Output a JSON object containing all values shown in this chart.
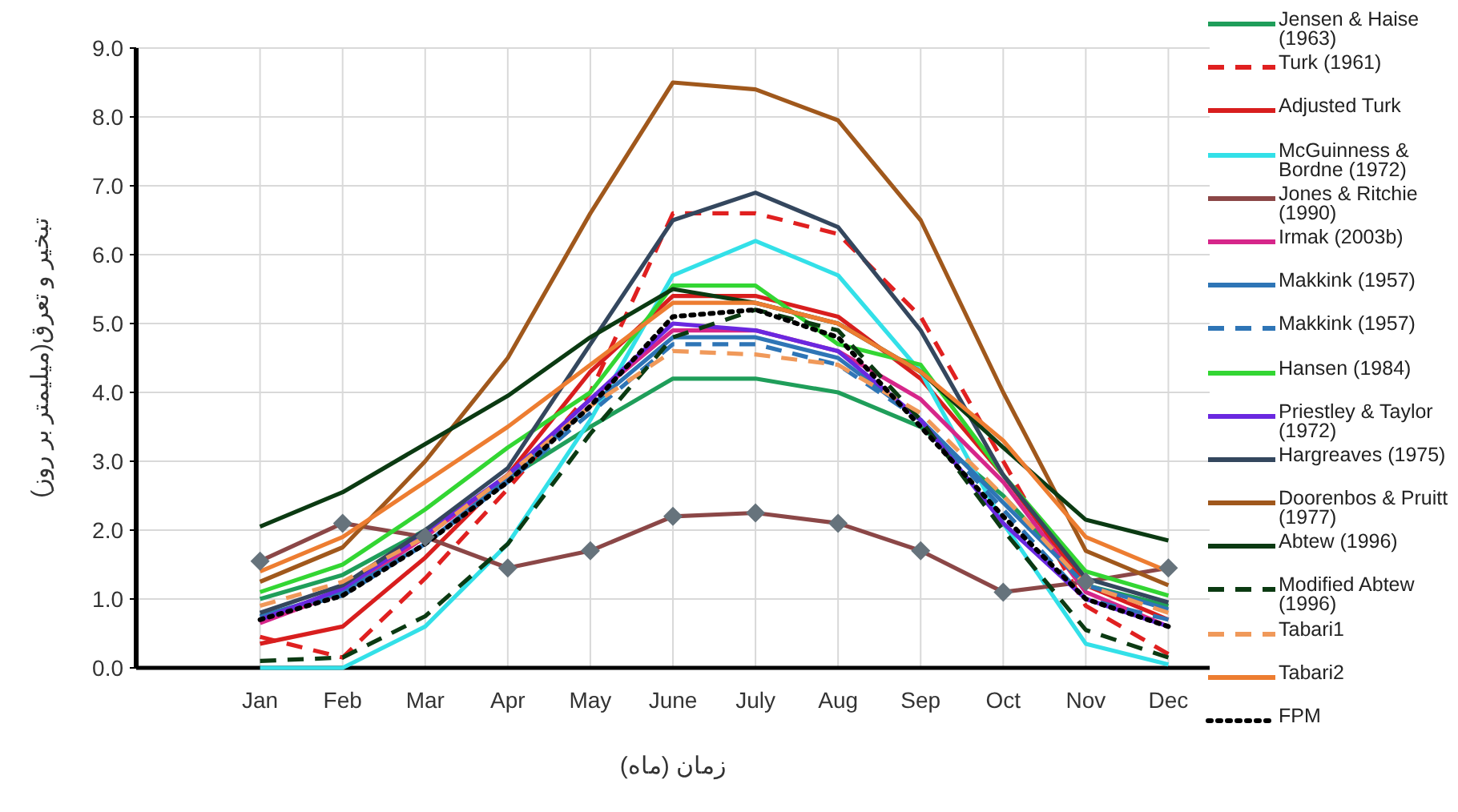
{
  "chart_data": {
    "type": "line",
    "xlabel": "زمان (ماه)",
    "ylabel": "تبخیر و تعرق(میلیمتر بر روز)",
    "categories": [
      "Jan",
      "Feb",
      "Mar",
      "Apr",
      "May",
      "June",
      "July",
      "Aug",
      "Sep",
      "Oct",
      "Nov",
      "Dec"
    ],
    "ylim": [
      0,
      9
    ],
    "yticks": [
      {
        "value": 0,
        "label": "0.0"
      },
      {
        "value": 1,
        "label": "1.0"
      },
      {
        "value": 2,
        "label": "2.0"
      },
      {
        "value": 3,
        "label": "3.0"
      },
      {
        "value": 4,
        "label": "4.0"
      },
      {
        "value": 5,
        "label": "5.0"
      },
      {
        "value": 6,
        "label": "6.0"
      },
      {
        "value": 7,
        "label": "7.0"
      },
      {
        "value": 8,
        "label": "8.0"
      },
      {
        "value": 9,
        "label": "9.0"
      }
    ],
    "grid": true,
    "legend": "right",
    "marker": "none",
    "series": [
      {
        "name": "Jensen & Haise (1963)",
        "color": "#1f9e5a",
        "line_style": "solid",
        "values": [
          1.0,
          1.35,
          2.0,
          2.75,
          3.5,
          4.2,
          4.2,
          4.0,
          3.5,
          2.5,
          1.2,
          0.9
        ]
      },
      {
        "name": "Turk (1961)",
        "color": "#e02020",
        "line_style": "dashed",
        "values": [
          0.45,
          0.15,
          1.3,
          2.6,
          4.0,
          6.6,
          6.6,
          6.3,
          5.1,
          3.0,
          0.9,
          0.2
        ]
      },
      {
        "name": "Adjusted Turk",
        "color": "#d81e1e",
        "line_style": "solid",
        "values": [
          0.35,
          0.6,
          1.6,
          2.8,
          4.3,
          5.4,
          5.4,
          5.1,
          4.2,
          2.8,
          1.2,
          0.7
        ]
      },
      {
        "name": "McGuinness & Bordne (1972)",
        "color": "#33e0e8",
        "line_style": "solid",
        "values": [
          0.0,
          0.0,
          0.6,
          1.8,
          3.6,
          5.7,
          6.2,
          5.7,
          4.3,
          2.1,
          0.35,
          0.05
        ]
      },
      {
        "name": "Jones & Ritchie (1990)",
        "color": "#8b4747",
        "line_style": "solid",
        "marker": "diamond",
        "values": [
          1.55,
          2.1,
          1.9,
          1.45,
          1.7,
          2.2,
          2.25,
          2.1,
          1.7,
          1.1,
          1.25,
          1.45
        ]
      },
      {
        "name": "Irmak (2003b)",
        "color": "#d6268a",
        "line_style": "solid",
        "values": [
          0.65,
          1.1,
          1.9,
          2.8,
          3.9,
          4.9,
          4.9,
          4.6,
          3.9,
          2.7,
          1.1,
          0.6
        ]
      },
      {
        "name": "Makkink (1957)",
        "color": "#2e75b6",
        "line_style": "solid",
        "values": [
          0.75,
          1.1,
          1.8,
          2.75,
          3.8,
          4.8,
          4.8,
          4.5,
          3.6,
          2.4,
          1.2,
          0.85
        ]
      },
      {
        "name": "Makkink (1957)",
        "color": "#2e75b6",
        "line_style": "dashed",
        "values": [
          0.75,
          1.05,
          1.8,
          2.7,
          3.7,
          4.7,
          4.7,
          4.4,
          3.6,
          2.3,
          1.0,
          0.7
        ]
      },
      {
        "name": "Hansen (1984)",
        "color": "#33d633",
        "line_style": "solid",
        "values": [
          1.1,
          1.5,
          2.3,
          3.2,
          4.0,
          5.55,
          5.55,
          4.7,
          4.4,
          2.8,
          1.4,
          1.05
        ]
      },
      {
        "name": "Priestley & Taylor (1972)",
        "color": "#6a28e0",
        "line_style": "solid",
        "values": [
          0.7,
          1.15,
          1.95,
          2.8,
          3.9,
          5.0,
          4.9,
          4.6,
          3.6,
          2.1,
          1.0,
          0.6
        ]
      },
      {
        "name": "Hargreaves (1975)",
        "color": "#34475e",
        "line_style": "solid",
        "values": [
          0.8,
          1.2,
          2.0,
          2.9,
          4.7,
          6.5,
          6.9,
          6.4,
          4.9,
          2.8,
          1.3,
          0.95
        ]
      },
      {
        "name": "Doorenbos & Pruitt (1977)",
        "color": "#a0581c",
        "line_style": "solid",
        "values": [
          1.25,
          1.75,
          3.0,
          4.5,
          6.6,
          8.5,
          8.4,
          7.95,
          6.5,
          4.0,
          1.7,
          1.2
        ]
      },
      {
        "name": "Abtew (1996)",
        "color": "#0b3a12",
        "line_style": "solid",
        "values": [
          2.05,
          2.55,
          3.25,
          3.95,
          4.8,
          5.5,
          5.3,
          5.0,
          4.3,
          3.2,
          2.15,
          1.85
        ]
      },
      {
        "name": "Modified Abtew (1996)",
        "color": "#0b3a12",
        "line_style": "dashed",
        "values": [
          0.1,
          0.15,
          0.75,
          1.8,
          3.4,
          4.8,
          5.2,
          4.9,
          3.6,
          2.0,
          0.55,
          0.15
        ]
      },
      {
        "name": "Tabari1",
        "color": "#f0995a",
        "line_style": "dashed",
        "values": [
          0.9,
          1.25,
          1.9,
          2.8,
          3.8,
          4.6,
          4.55,
          4.4,
          3.7,
          2.5,
          1.2,
          0.8
        ]
      },
      {
        "name": "Tabari2",
        "color": "#ed7d31",
        "line_style": "solid",
        "values": [
          1.4,
          1.9,
          2.7,
          3.5,
          4.4,
          5.3,
          5.3,
          5.0,
          4.3,
          3.3,
          1.9,
          1.4
        ]
      },
      {
        "name": "FPM",
        "color": "#000000",
        "line_style": "dotted",
        "values": [
          0.7,
          1.05,
          1.8,
          2.7,
          3.8,
          5.1,
          5.2,
          4.8,
          3.5,
          2.2,
          1.0,
          0.6
        ]
      }
    ]
  }
}
